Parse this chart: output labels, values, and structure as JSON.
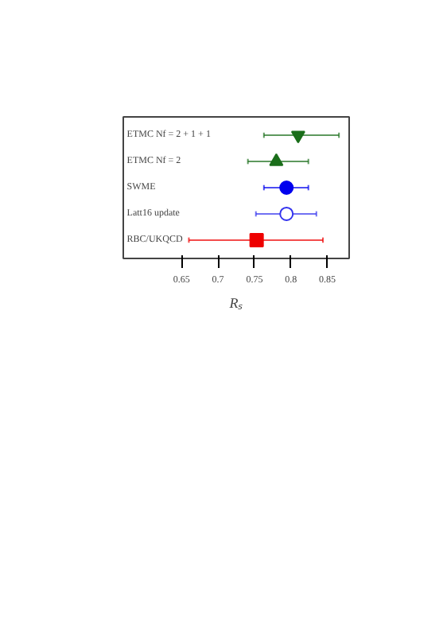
{
  "chart_data": {
    "type": "scatter",
    "orientation": "horizontal",
    "xlabel": "Rₛ",
    "categories": [
      "ETMC Nf = 2 + 1 + 1",
      "ETMC Nf = 2",
      "SWME",
      "Latt16 update",
      "RBC/UKQCD"
    ],
    "series": [
      {
        "color": "#1a6e1a",
        "values": [
          0.81,
          null,
          null,
          null,
          null
        ],
        "errors": [
          [
            0.763,
            0.866
          ],
          null,
          null,
          null,
          null
        ]
      },
      {
        "color": "#1a6e1a",
        "marker": "triangle",
        "values": [
          null,
          0.78,
          null,
          null,
          null
        ],
        "errors": [
          null,
          [
            0.741,
            0.824
          ],
          null,
          null,
          null
        ]
      },
      {
        "color": "#0000ee",
        "marker": "circle",
        "values": [
          null,
          null,
          0.794,
          null,
          null
        ],
        "errors": [
          null,
          null,
          [
            0.763,
            0.824
          ],
          null,
          null
        ]
      },
      {
        "color": "#3333ee",
        "marker": "circle_open",
        "values": [
          null,
          null,
          null,
          0.794,
          null
        ],
        "errors": [
          null,
          null,
          null,
          [
            0.752,
            0.835
          ],
          null
        ]
      },
      {
        "color": "#ee0000",
        "marker": "square",
        "values": [
          null,
          null,
          null,
          null,
          0.753
        ],
        "errors": [
          null,
          null,
          null,
          null,
          [
            0.66,
            0.844
          ]
        ]
      }
    ],
    "xlim": [
      0.57,
      0.88
    ],
    "xticks": [
      0.65,
      0.7,
      0.75,
      0.8,
      0.85
    ],
    "grid": false,
    "tick_labels": "x"
  }
}
